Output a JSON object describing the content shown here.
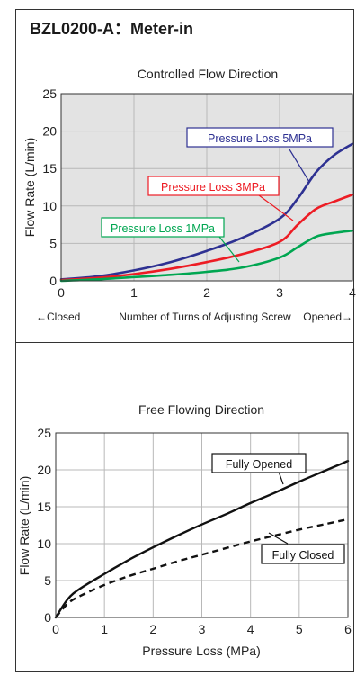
{
  "header": {
    "title": "BZL0200-A：Meter-in"
  },
  "colors": {
    "loss_5": "#2e3192",
    "loss_3": "#ed1c24",
    "loss_1": "#00a651",
    "fully": "#111111",
    "grid": "#b8b8b8",
    "plot_bg": "#e3e3e3",
    "frame": "#333333"
  },
  "chart_data": [
    {
      "type": "line",
      "title": "Controlled Flow Direction",
      "ylabel": "Flow Rate (L/min)",
      "xlim": [
        0,
        4
      ],
      "ylim": [
        0,
        25
      ],
      "x_ticks": [
        "0",
        "1",
        "2",
        "3",
        "4"
      ],
      "y_ticks": [
        "0",
        "5",
        "10",
        "15",
        "20",
        "25"
      ],
      "x_axis_left": "←Closed",
      "x_axis_center": "Number of Turns of Adjusting Screw",
      "x_axis_right": "Opened→",
      "grid": true,
      "background": "gray",
      "series": [
        {
          "name": "Pressure Loss 5MPa",
          "color": "#2e3192",
          "x": [
            0,
            0.5,
            1,
            1.5,
            2,
            2.5,
            3,
            3.25,
            3.5,
            3.75,
            4
          ],
          "y": [
            0.2,
            0.6,
            1.4,
            2.5,
            4.0,
            5.8,
            8.3,
            11.0,
            14.5,
            16.8,
            18.3
          ]
        },
        {
          "name": "Pressure Loss 3MPa",
          "color": "#ed1c24",
          "x": [
            0,
            0.5,
            1,
            1.5,
            2,
            2.5,
            3,
            3.25,
            3.5,
            3.75,
            4
          ],
          "y": [
            0.1,
            0.4,
            0.9,
            1.6,
            2.5,
            3.6,
            5.2,
            7.5,
            9.6,
            10.6,
            11.5
          ]
        },
        {
          "name": "Pressure Loss 1MPa",
          "color": "#00a651",
          "x": [
            0,
            0.5,
            1,
            1.5,
            2,
            2.5,
            3,
            3.25,
            3.5,
            3.75,
            4
          ],
          "y": [
            0.0,
            0.2,
            0.5,
            0.8,
            1.2,
            1.8,
            3.1,
            4.5,
            5.9,
            6.4,
            6.7
          ]
        }
      ]
    },
    {
      "type": "line",
      "title": "Free Flowing Direction",
      "ylabel": "Flow Rate (L/min)",
      "xlabel": "Pressure Loss (MPa)",
      "xlim": [
        0,
        6
      ],
      "ylim": [
        0,
        25
      ],
      "x_ticks": [
        "0",
        "1",
        "2",
        "3",
        "4",
        "5",
        "6"
      ],
      "y_ticks": [
        "0",
        "5",
        "10",
        "15",
        "20",
        "25"
      ],
      "grid": true,
      "background": "white",
      "series": [
        {
          "name": "Fully Opened",
          "color": "#111111",
          "style": "solid",
          "x": [
            0,
            0.25,
            0.5,
            1,
            1.5,
            2,
            2.5,
            3,
            3.5,
            4,
            4.5,
            5,
            5.5,
            6
          ],
          "y": [
            0,
            2.5,
            3.9,
            5.9,
            7.8,
            9.5,
            11.1,
            12.6,
            14.0,
            15.5,
            16.9,
            18.4,
            19.8,
            21.2
          ]
        },
        {
          "name": "Fully Closed",
          "color": "#111111",
          "style": "dashed",
          "x": [
            0,
            0.25,
            0.5,
            1,
            1.5,
            2,
            2.5,
            3,
            3.5,
            4,
            4.5,
            5,
            5.5,
            6
          ],
          "y": [
            0,
            1.9,
            2.9,
            4.4,
            5.6,
            6.6,
            7.6,
            8.5,
            9.4,
            10.3,
            11.1,
            11.9,
            12.6,
            13.3
          ]
        }
      ]
    }
  ]
}
